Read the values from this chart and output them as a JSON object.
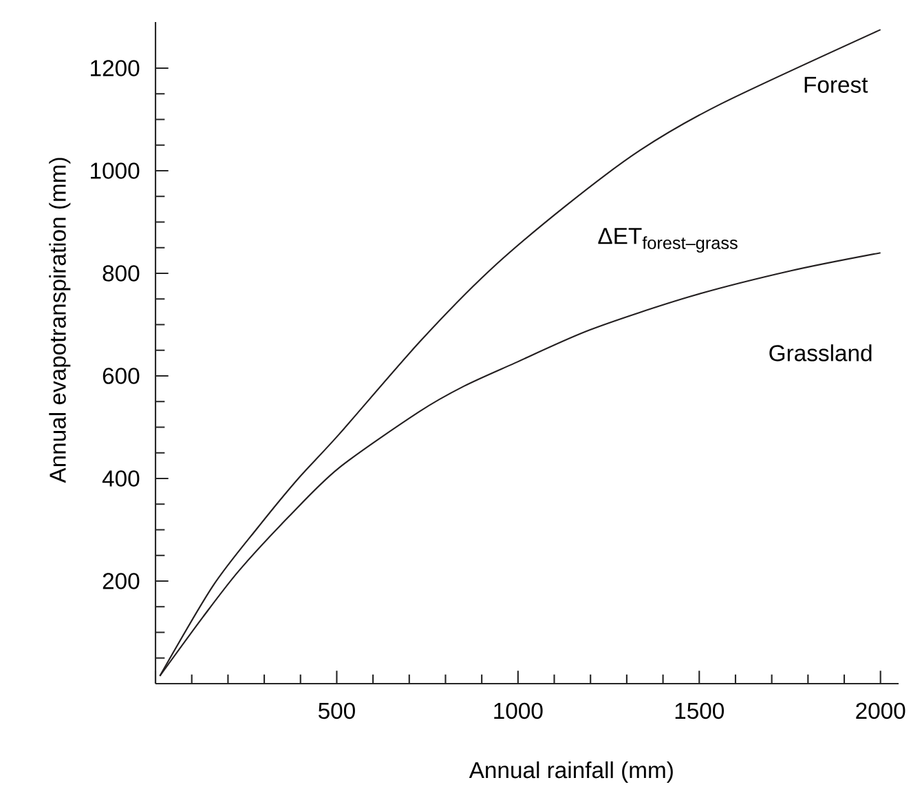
{
  "chart_data": {
    "type": "line",
    "xlabel": "Annual rainfall (mm)",
    "ylabel": "Annual evapotranspiration (mm)",
    "xlim": [
      0,
      2050
    ],
    "ylim": [
      0,
      1290
    ],
    "xticks": [
      {
        "value": 0,
        "label": null
      },
      500,
      1000,
      1500,
      2000
    ],
    "yticks": [
      {
        "value": 0,
        "label": null
      },
      200,
      400,
      600,
      800,
      1000,
      1200
    ],
    "grid": false,
    "marker": "none",
    "line_style": "solid",
    "series": [
      {
        "color": "#231f20",
        "x": [
          12,
          158,
          283,
          394,
          505,
          727,
          921,
          1129,
          1337,
          1559,
          2000
        ],
        "values": [
          15,
          190,
          305,
          400,
          485,
          665,
          805,
          930,
          1040,
          1130,
          1275
        ]
      },
      {
        "color": "#231f20",
        "x": [
          12,
          131,
          230,
          367,
          505,
          727,
          851,
          991,
          1199,
          1476,
          1753,
          2000
        ],
        "values": [
          15,
          130,
          220,
          325,
          420,
          530,
          580,
          625,
          690,
          755,
          805,
          840
        ]
      }
    ],
    "annotations": [
      "Forest",
      "\\hbox{ΔET}_{\\hbox{\\fontsize{9.5}{11}\\selectfont forest–grass}}",
      "Grassland"
    ]
  }
}
